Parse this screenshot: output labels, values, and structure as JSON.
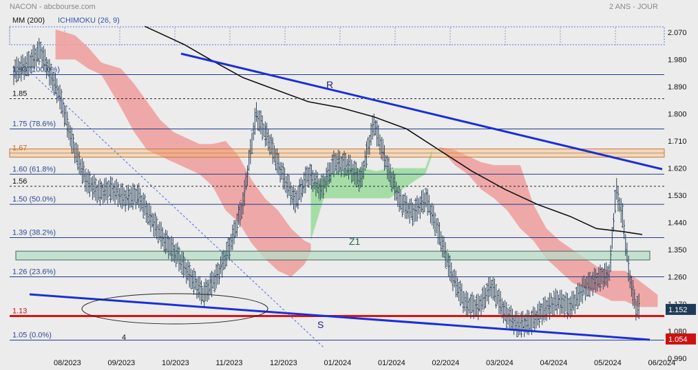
{
  "header": {
    "left": "NACON - abcbourse.com",
    "right": "2 ANS - JOUR",
    "indicators": [
      "MM (200)",
      "ICHIMOKU (26, 9)"
    ]
  },
  "chart_data": {
    "type": "candlestick",
    "instrument": "NACON",
    "period": "2 ANS - JOUR",
    "y_ticks": [
      2.07,
      1.98,
      1.89,
      1.8,
      1.71,
      1.62,
      1.53,
      1.44,
      1.35,
      1.26,
      1.17,
      1.08,
      0.99
    ],
    "ylim": [
      0.99,
      2.07
    ],
    "x_ticks": [
      "08/2023",
      "09/2023",
      "10/2023",
      "11/2023",
      "12/2023",
      "01/2024",
      "01/2024",
      "02/2024",
      "03/2024",
      "04/2024",
      "05/2024",
      "06/2024"
    ],
    "last_price": "1.152",
    "last_price_2": "1.054",
    "colors": {
      "background": "#ececec",
      "resistance_lines": "#1a2fd8",
      "support_line": "#e01010",
      "fib_lines": "#1f3a8a",
      "cloud_bearish": "#f09c9c",
      "cloud_bullish": "#9fdca0",
      "ma200": "#111111",
      "candles": "#2a4158",
      "price_badge": "#1e3a57",
      "price_badge_2": "#cc1111"
    },
    "horizontal_levels": [
      {
        "label": "1.93 (100.0%)",
        "value": 1.93,
        "kind": "fib"
      },
      {
        "label": "1.85",
        "value": 1.85,
        "kind": "dashed"
      },
      {
        "label": "1.75 (78.6%)",
        "value": 1.75,
        "kind": "fib"
      },
      {
        "label": "1.67",
        "value": 1.67,
        "kind": "orange"
      },
      {
        "label": "1.60 (61.8%)",
        "value": 1.6,
        "kind": "fib"
      },
      {
        "label": "1.56",
        "value": 1.56,
        "kind": "dashed"
      },
      {
        "label": "1.50 (50.0%)",
        "value": 1.5,
        "kind": "fib"
      },
      {
        "label": "1.39 (38.2%)",
        "value": 1.39,
        "kind": "fib"
      },
      {
        "label": "1.26 (23.6%)",
        "value": 1.26,
        "kind": "fib"
      },
      {
        "label": "1.13",
        "value": 1.13,
        "kind": "support"
      },
      {
        "label": "1.05 (0.0%)",
        "value": 1.05,
        "kind": "fib"
      }
    ],
    "annotations": [
      "R",
      "S",
      "Z1",
      "4"
    ],
    "ma200": [
      {
        "t": 0.2,
        "v": 2.09
      },
      {
        "t": 0.26,
        "v": 2.03
      },
      {
        "t": 0.3,
        "v": 1.98
      },
      {
        "t": 0.35,
        "v": 1.92
      },
      {
        "t": 0.4,
        "v": 1.88
      },
      {
        "t": 0.45,
        "v": 1.84
      },
      {
        "t": 0.5,
        "v": 1.82
      },
      {
        "t": 0.55,
        "v": 1.79
      },
      {
        "t": 0.6,
        "v": 1.75
      },
      {
        "t": 0.65,
        "v": 1.68
      },
      {
        "t": 0.7,
        "v": 1.61
      },
      {
        "t": 0.75,
        "v": 1.55
      },
      {
        "t": 0.8,
        "v": 1.5
      },
      {
        "t": 0.85,
        "v": 1.46
      },
      {
        "t": 0.89,
        "v": 1.42
      },
      {
        "t": 0.93,
        "v": 1.41
      },
      {
        "t": 0.96,
        "v": 1.4
      }
    ],
    "close": [
      {
        "t": 0.0,
        "v": 1.94
      },
      {
        "t": 0.02,
        "v": 1.96
      },
      {
        "t": 0.04,
        "v": 2.01
      },
      {
        "t": 0.05,
        "v": 1.96
      },
      {
        "t": 0.07,
        "v": 1.86
      },
      {
        "t": 0.09,
        "v": 1.7
      },
      {
        "t": 0.11,
        "v": 1.58
      },
      {
        "t": 0.13,
        "v": 1.54
      },
      {
        "t": 0.15,
        "v": 1.55
      },
      {
        "t": 0.17,
        "v": 1.52
      },
      {
        "t": 0.19,
        "v": 1.53
      },
      {
        "t": 0.21,
        "v": 1.45
      },
      {
        "t": 0.23,
        "v": 1.38
      },
      {
        "t": 0.25,
        "v": 1.33
      },
      {
        "t": 0.27,
        "v": 1.26
      },
      {
        "t": 0.29,
        "v": 1.2
      },
      {
        "t": 0.31,
        "v": 1.26
      },
      {
        "t": 0.33,
        "v": 1.36
      },
      {
        "t": 0.35,
        "v": 1.5
      },
      {
        "t": 0.37,
        "v": 1.8
      },
      {
        "t": 0.39,
        "v": 1.71
      },
      {
        "t": 0.41,
        "v": 1.6
      },
      {
        "t": 0.43,
        "v": 1.51
      },
      {
        "t": 0.45,
        "v": 1.6
      },
      {
        "t": 0.47,
        "v": 1.55
      },
      {
        "t": 0.49,
        "v": 1.64
      },
      {
        "t": 0.51,
        "v": 1.63
      },
      {
        "t": 0.53,
        "v": 1.58
      },
      {
        "t": 0.55,
        "v": 1.77
      },
      {
        "t": 0.57,
        "v": 1.63
      },
      {
        "t": 0.59,
        "v": 1.51
      },
      {
        "t": 0.61,
        "v": 1.47
      },
      {
        "t": 0.63,
        "v": 1.52
      },
      {
        "t": 0.65,
        "v": 1.4
      },
      {
        "t": 0.67,
        "v": 1.26
      },
      {
        "t": 0.69,
        "v": 1.17
      },
      {
        "t": 0.71,
        "v": 1.16
      },
      {
        "t": 0.73,
        "v": 1.23
      },
      {
        "t": 0.75,
        "v": 1.14
      },
      {
        "t": 0.77,
        "v": 1.1
      },
      {
        "t": 0.79,
        "v": 1.11
      },
      {
        "t": 0.81,
        "v": 1.15
      },
      {
        "t": 0.83,
        "v": 1.18
      },
      {
        "t": 0.85,
        "v": 1.16
      },
      {
        "t": 0.87,
        "v": 1.22
      },
      {
        "t": 0.89,
        "v": 1.25
      },
      {
        "t": 0.91,
        "v": 1.27
      },
      {
        "t": 0.92,
        "v": 1.55
      },
      {
        "t": 0.93,
        "v": 1.46
      },
      {
        "t": 0.94,
        "v": 1.27
      },
      {
        "t": 0.95,
        "v": 1.16
      }
    ]
  }
}
